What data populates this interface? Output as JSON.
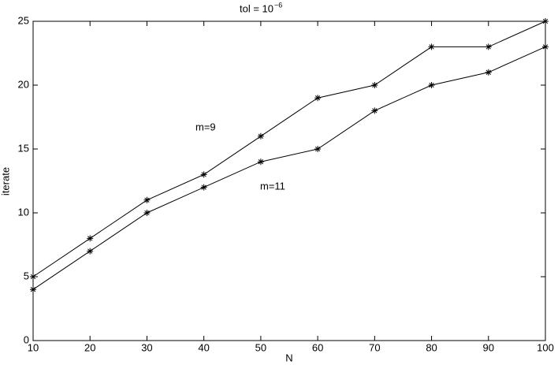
{
  "chart_data": {
    "type": "line",
    "title": "tol = 10",
    "title_superscript": "−6",
    "xlabel": "N",
    "ylabel": "iterate",
    "x": [
      10,
      20,
      30,
      40,
      50,
      60,
      70,
      80,
      90,
      100
    ],
    "series": [
      {
        "name": "m=9",
        "color": "#000000",
        "values": [
          5,
          8,
          11,
          13,
          16,
          19,
          20,
          23,
          23,
          25
        ]
      },
      {
        "name": "m=11",
        "color": "#000000",
        "values": [
          4,
          7,
          10,
          12,
          14,
          15,
          18,
          20,
          21,
          23
        ]
      }
    ],
    "xlim": [
      10,
      100
    ],
    "xticks": [
      10,
      20,
      30,
      40,
      50,
      60,
      70,
      80,
      90,
      100
    ],
    "ylim": [
      0,
      25
    ],
    "yticks": [
      0,
      5,
      10,
      15,
      20,
      25
    ],
    "grid": false
  }
}
